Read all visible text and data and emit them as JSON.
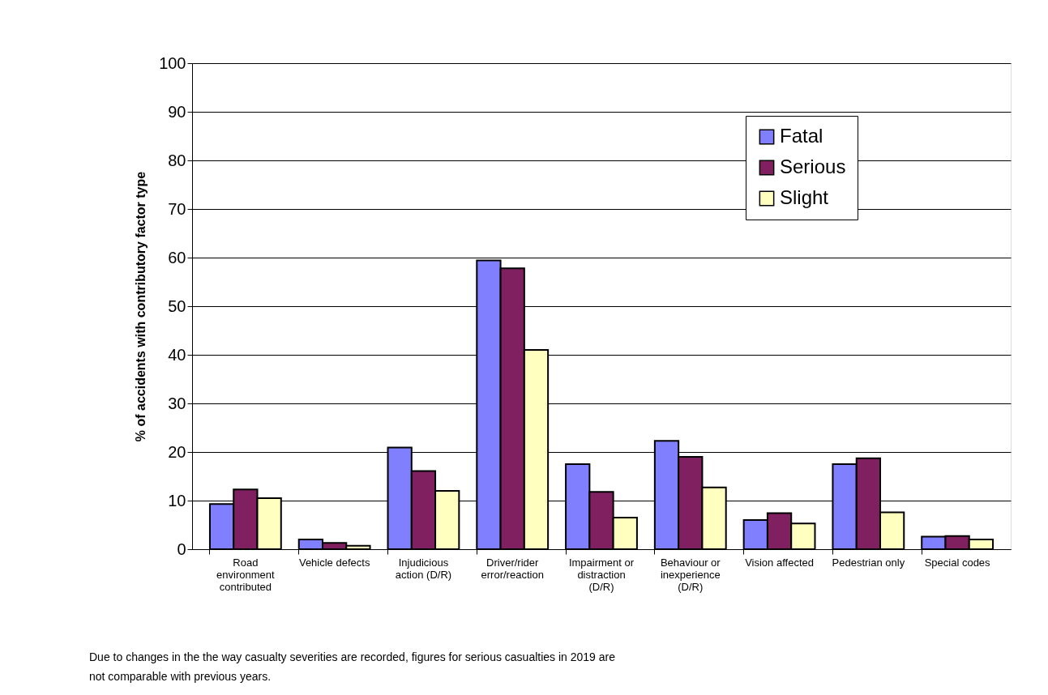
{
  "chart_data": {
    "type": "bar",
    "ylabel": "% of accidents with contributory factor type",
    "categories": [
      "Road environment contributed",
      "Vehicle defects",
      "Injudicious action (D/R)",
      "Driver/rider error/reaction",
      "Impairment or distraction (D/R)",
      "Behaviour or inexperience (D/R)",
      "Vision affected",
      "Pedestrian only",
      "Special codes"
    ],
    "series": [
      {
        "name": "Fatal",
        "color": "#8080ff",
        "values": [
          9.3,
          2.0,
          20.9,
          59.4,
          17.5,
          22.3,
          6.0,
          17.5,
          2.6
        ]
      },
      {
        "name": "Serious",
        "color": "#802060",
        "values": [
          12.3,
          1.3,
          16.1,
          57.8,
          11.8,
          19.0,
          7.4,
          18.7,
          2.7
        ]
      },
      {
        "name": "Slight",
        "color": "#ffffc0",
        "values": [
          10.5,
          0.7,
          12.0,
          41.0,
          6.5,
          12.7,
          5.3,
          7.6,
          2.0
        ]
      }
    ],
    "ylim": [
      0,
      100
    ],
    "yticks": [
      0,
      10,
      20,
      30,
      40,
      50,
      60,
      70,
      80,
      90,
      100
    ],
    "grid": "y",
    "legend": "top right",
    "annotations": [
      "Due to changes in the the way casualty severities are recorded, figures for serious casualties in 2019 are not comparable with previous years."
    ]
  }
}
